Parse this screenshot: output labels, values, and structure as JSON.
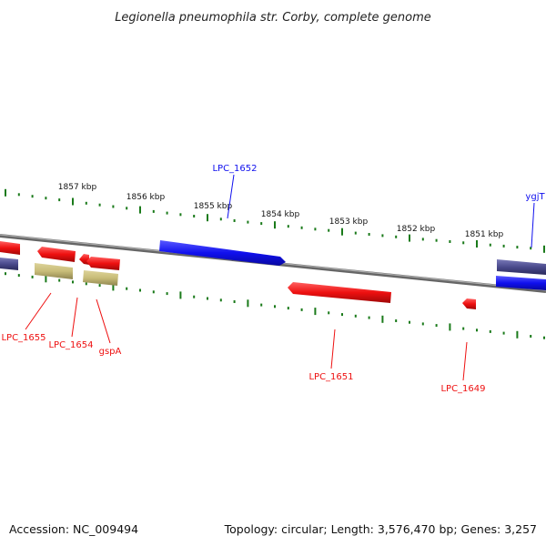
{
  "title": "Legionella pneumophila str. Corby, complete genome",
  "footer": {
    "accession": "Accession: NC_009494",
    "summary": "Topology: circular; Length: 3,576,470 bp; Genes: 3,257"
  },
  "colors": {
    "forward_gene": "#1010ee",
    "reverse_gene": "#ee1010",
    "other_feature": "#c8bc78",
    "flank_feature": "#4a4a8c",
    "backbone": "#888888",
    "tick": "#1a7a1a"
  },
  "scale_labels": [
    "1857 kbp",
    "1856 kbp",
    "1855 kbp",
    "1854 kbp",
    "1853 kbp",
    "1852 kbp",
    "1851 kbp"
  ],
  "gene_labels": {
    "forward": [
      "LPC_1652",
      "ygjT"
    ],
    "reverse": [
      "LPC_1655",
      "LPC_1654",
      "gspA",
      "LPC_1651",
      "LPC_1649"
    ]
  }
}
